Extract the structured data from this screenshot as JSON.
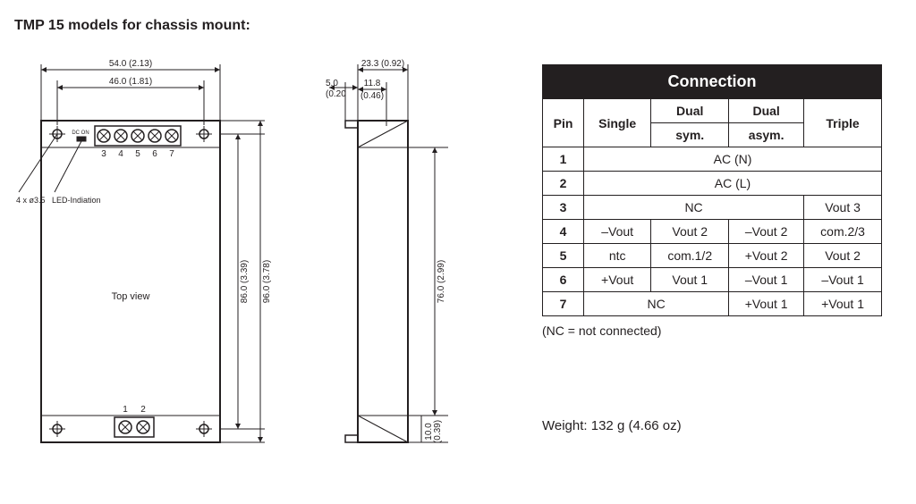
{
  "title": "TMP 15 models for chassis mount:",
  "diagram": {
    "stroke": "#231f20",
    "fill": "#ffffff",
    "dim_font_size": 10,
    "label_top_view": "Top view",
    "label_dc_on": "DC ON",
    "label_holes": "4 x ø3.5",
    "label_led": "LED-Indiation",
    "pin_labels_top": [
      "3",
      "4",
      "5",
      "6",
      "7"
    ],
    "pin_labels_bottom": [
      "1",
      "2"
    ],
    "dims": {
      "w1": "54.0 (2.13)",
      "w2": "46.0 (1.81)",
      "h1": "86.0 (3.39)",
      "h2": "96.0 (3.78)",
      "side_w": "23.3 (0.92)",
      "side_off": "5.0",
      "side_off2": "(0.20",
      "side_top": "11.8",
      "side_top2": "(0.46)",
      "side_h": "76.0 (2.99)",
      "side_foot": "10.0",
      "side_foot2": "(0.39)"
    }
  },
  "table": {
    "header": "Connection",
    "cols": [
      "Pin",
      "Single",
      "Dual sym.",
      "Dual asym.",
      "Triple"
    ],
    "col_line2": {
      "2": "sym.",
      "3": "asym."
    },
    "rows": [
      {
        "pin": "1",
        "cells": [
          {
            "text": "AC (N)",
            "span": 4
          }
        ]
      },
      {
        "pin": "2",
        "cells": [
          {
            "text": "AC (L)",
            "span": 4
          }
        ]
      },
      {
        "pin": "3",
        "cells": [
          {
            "text": "NC",
            "span": 3
          },
          {
            "text": "Vout 3",
            "span": 1
          }
        ]
      },
      {
        "pin": "4",
        "cells": [
          {
            "text": "–Vout",
            "span": 1
          },
          {
            "text": "Vout 2",
            "span": 1
          },
          {
            "text": "–Vout 2",
            "span": 1
          },
          {
            "text": "com.2/3",
            "span": 1
          }
        ]
      },
      {
        "pin": "5",
        "cells": [
          {
            "text": "ntc",
            "span": 1
          },
          {
            "text": "com.1/2",
            "span": 1
          },
          {
            "text": "+Vout 2",
            "span": 1
          },
          {
            "text": "Vout 2",
            "span": 1
          }
        ]
      },
      {
        "pin": "6",
        "cells": [
          {
            "text": "+Vout",
            "span": 1
          },
          {
            "text": "Vout 1",
            "span": 1
          },
          {
            "text": "–Vout 1",
            "span": 1
          },
          {
            "text": "–Vout 1",
            "span": 1
          }
        ]
      },
      {
        "pin": "7",
        "cells": [
          {
            "text": "NC",
            "span": 2
          },
          {
            "text": "+Vout 1",
            "span": 1
          },
          {
            "text": "+Vout 1",
            "span": 1
          }
        ]
      }
    ],
    "note": "(NC = not connected)",
    "weight": "Weight: 132 g (4.66 oz)"
  }
}
